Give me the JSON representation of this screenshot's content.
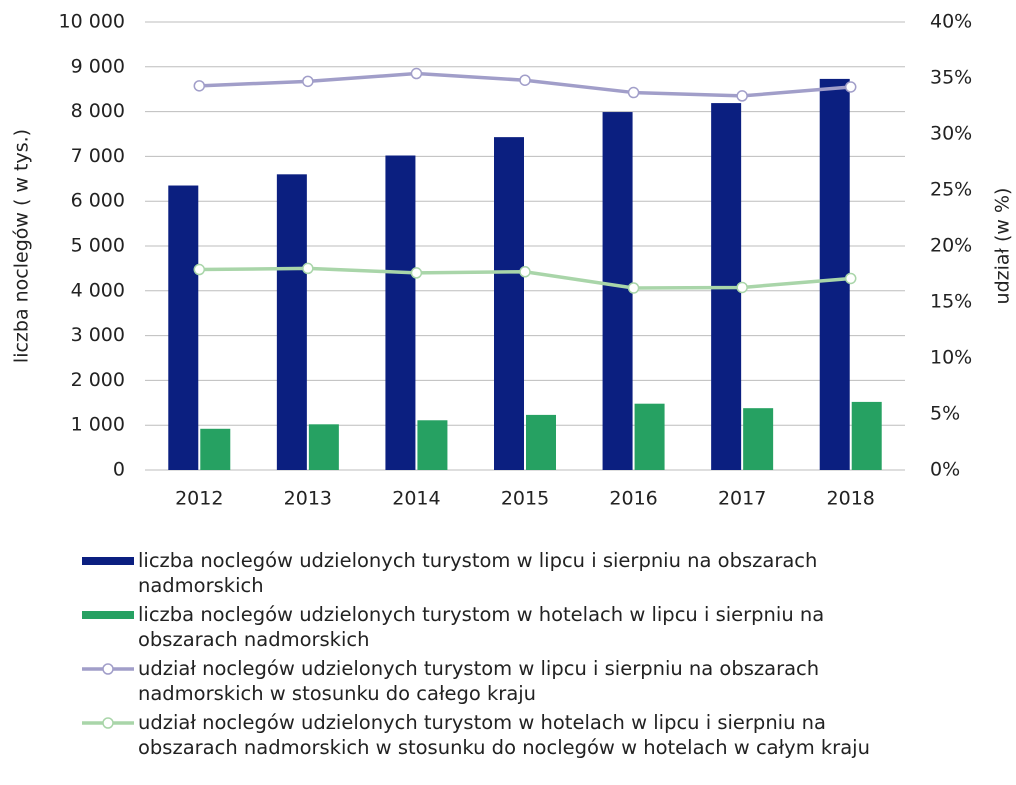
{
  "chart_data": {
    "type": "bar",
    "y_label": "liczba noclegów ( w tys.)",
    "y2_label": "udział (w %)",
    "categories": [
      "2012",
      "2013",
      "2014",
      "2015",
      "2016",
      "2017",
      "2018"
    ],
    "series": [
      {
        "name": "liczba noclegów udzielonych turystom w lipcu i sierpniu na obszarach nadmorskich",
        "color": "#0b1f80",
        "values": [
          6350,
          6600,
          7020,
          7430,
          7990,
          8190,
          8730
        ]
      },
      {
        "name": "liczba noclegów udzielonych turystom w hotelach w lipcu i sierpniu na obszarach nadmorskich",
        "color": "#26a162",
        "values": [
          920,
          1020,
          1110,
          1230,
          1480,
          1380,
          1520
        ]
      },
      {
        "name": "udział noclegów udzielonych turystom w lipcu i sierpniu na obszarach nadmorskich w stosunku do całego kraju",
        "color": "#a19ec9",
        "type": "line",
        "axis": "y2",
        "values": [
          34.3,
          34.7,
          35.4,
          34.8,
          33.7,
          33.4,
          34.2
        ]
      },
      {
        "name": "udział noclegów udzielonych turystom w hotelach w lipcu i sierpniu na obszarach nadmorskich w stosunku do noclegów w hotelach w całym kraju",
        "color": "#a9d5a9",
        "type": "line",
        "axis": "y2",
        "values": [
          17.9,
          18.0,
          17.6,
          17.7,
          16.25,
          16.3,
          17.1
        ]
      }
    ],
    "ylim": [
      0,
      10000
    ],
    "yticks": [
      0,
      {
        "value": 1000,
        "label": "1 000"
      },
      {
        "value": 2000,
        "label": "2 000"
      },
      {
        "value": 3000,
        "label": "3 000"
      },
      {
        "value": 4000,
        "label": "4 000"
      },
      {
        "value": 5000,
        "label": "5 000"
      },
      {
        "value": 6000,
        "label": "6 000"
      },
      {
        "value": 7000,
        "label": "7 000"
      },
      {
        "value": 8000,
        "label": "8 000"
      },
      {
        "value": 9000,
        "label": "9 000"
      },
      {
        "value": 10000,
        "label": "10 000"
      }
    ],
    "y2lim": [
      0,
      40
    ],
    "y2ticks": [
      {
        "value": 0,
        "label": "0%"
      },
      {
        "value": 5,
        "label": "5%"
      },
      {
        "value": 10,
        "label": "10%"
      },
      {
        "value": 15,
        "label": "15%"
      },
      {
        "value": 20,
        "label": "20%"
      },
      {
        "value": 25,
        "label": "25%"
      },
      {
        "value": 30,
        "label": "30%"
      },
      {
        "value": 35,
        "label": "35%"
      },
      {
        "value": 40,
        "label": "40%"
      }
    ],
    "grid": true
  }
}
